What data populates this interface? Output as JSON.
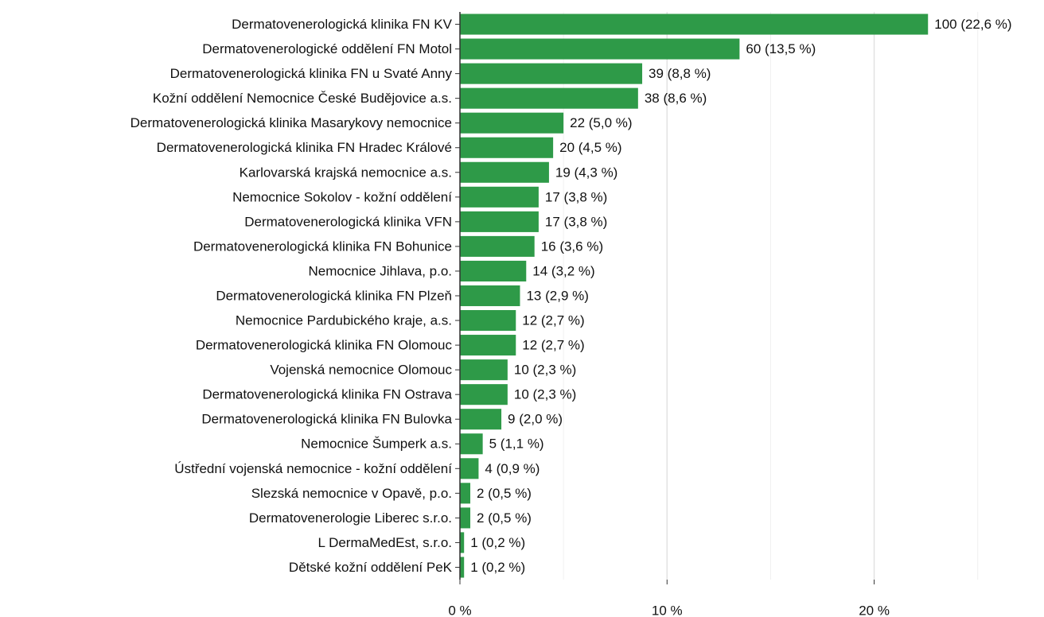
{
  "chart_data": {
    "type": "barh",
    "categories": [
      "Dermatovenerologická klinika FN KV",
      "Dermatovenerologické oddělení FN Motol",
      "Dermatovenerologická klinika FN u Svaté Anny",
      "Kožní oddělení Nemocnice České Budějovice a.s.",
      "Dermatovenerologická klinika Masarykovy nemocnice",
      "Dermatovenerologická klinika FN Hradec Králové",
      "Karlovarská krajská nemocnice a.s.",
      "Nemocnice Sokolov - kožní oddělení",
      "Dermatovenerologická klinika VFN",
      "Dermatovenerologická klinika FN Bohunice",
      "Nemocnice Jihlava, p.o.",
      "Dermatovenerologická klinika FN Plzeň",
      "Nemocnice Pardubického kraje, a.s.",
      "Dermatovenerologická klinika FN Olomouc",
      "Vojenská nemocnice Olomouc",
      "Dermatovenerologická klinika FN Ostrava",
      "Dermatovenerologická klinika FN Bulovka",
      "Nemocnice Šumperk a.s.",
      "Ústřední vojenská nemocnice - kožní oddělení",
      "Slezská nemocnice v Opavě, p.o.",
      "Dermatovenerologie Liberec s.r.o.",
      "L DermaMedEst, s.r.o.",
      "Dětské kožní oddělení PeK"
    ],
    "values": [
      22.6,
      13.5,
      8.8,
      8.6,
      5.0,
      4.5,
      4.3,
      3.8,
      3.8,
      3.6,
      3.2,
      2.9,
      2.7,
      2.7,
      2.3,
      2.3,
      2.0,
      1.1,
      0.9,
      0.5,
      0.5,
      0.2,
      0.2
    ],
    "value_labels": [
      "100 (22,6 %)",
      "60 (13,5 %)",
      "39 (8,8 %)",
      "38 (8,6 %)",
      "22 (5,0 %)",
      "20 (4,5 %)",
      "19 (4,3 %)",
      "17 (3,8 %)",
      "17 (3,8 %)",
      "16 (3,6 %)",
      "14 (3,2 %)",
      "13 (2,9 %)",
      "12 (2,7 %)",
      "12 (2,7 %)",
      "10 (2,3 %)",
      "10 (2,3 %)",
      "9 (2,0 %)",
      "5 (1,1 %)",
      "4 (0,9 %)",
      "2 (0,5 %)",
      "2 (0,5 %)",
      "1 (0,2 %)",
      "1 (0,2 %)"
    ],
    "color": "#2e9a48",
    "xlim": [
      0,
      28.2
    ],
    "xticks": [
      {
        "value": 0,
        "label": "0 %"
      },
      {
        "value": 10,
        "label": "10 %"
      },
      {
        "value": 20,
        "label": "20 %"
      }
    ],
    "xminor": [
      5,
      15,
      25
    ],
    "grid": true
  }
}
